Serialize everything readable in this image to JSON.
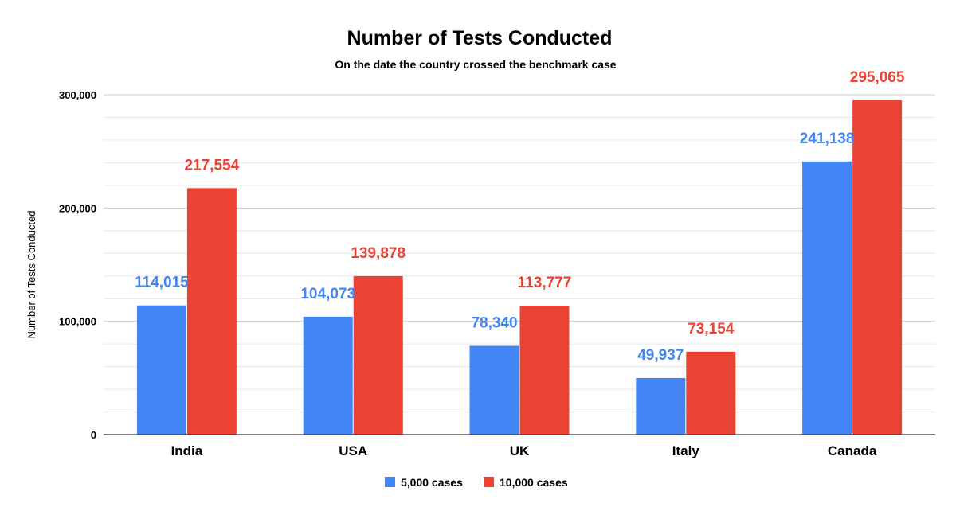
{
  "chart_data": {
    "type": "bar",
    "title": "Number of Tests Conducted",
    "subtitle": "On the date the country crossed the benchmark case",
    "ylabel": "Number of Tests Conducted",
    "xlabel": "",
    "categories": [
      "India",
      "USA",
      "UK",
      "Italy",
      "Canada"
    ],
    "series": [
      {
        "name": "5,000 cases",
        "color": "#4285f4",
        "values": [
          114015,
          104073,
          78340,
          49937,
          241138
        ],
        "labels": [
          "114,015",
          "104,073",
          "78,340",
          "49,937",
          "241,138"
        ]
      },
      {
        "name": "10,000 cases",
        "color": "#ea4335",
        "values": [
          217554,
          139878,
          113777,
          73154,
          295065
        ],
        "labels": [
          "217,554",
          "139,878",
          "113,777",
          "73,154",
          "295,065"
        ]
      }
    ],
    "ylim": [
      0,
      300000
    ],
    "yticks": [
      0,
      100000,
      200000,
      300000
    ],
    "ytick_labels": [
      "0",
      "100,000",
      "200,000",
      "300,000"
    ],
    "minor_grid_step": 20000,
    "grid": true,
    "legend_position": "bottom"
  }
}
